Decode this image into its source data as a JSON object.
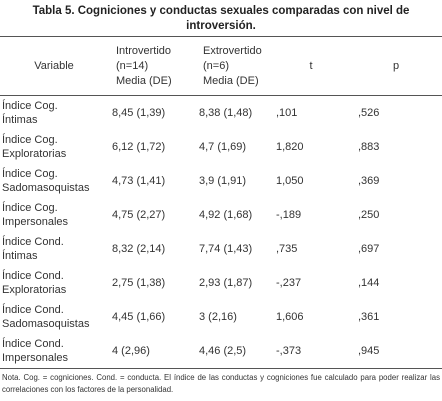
{
  "title": "Tabla 5. Cogniciones y conductas sexuales comparadas con nivel de introversión.",
  "table": {
    "header": [
      [
        "Variable"
      ],
      [
        "Introvertido",
        "(n=14)",
        "Media (DE)"
      ],
      [
        "Extrovertido",
        "(n=6)",
        "Media (DE)"
      ],
      [
        "t"
      ],
      [
        "p"
      ]
    ],
    "rows": [
      [
        [
          "Índice Cog.",
          "Íntimas"
        ],
        "8,45 (1,39)",
        "8,38 (1,48)",
        ",101",
        ",526"
      ],
      [
        [
          "Índice Cog.",
          "Exploratorias"
        ],
        "6,12 (1,72)",
        "4,7 (1,69)",
        "1,820",
        ",883"
      ],
      [
        [
          "Índice Cog.",
          "Sadomasoquistas"
        ],
        "4,73 (1,41)",
        "3,9 (1,91)",
        "1,050",
        ",369"
      ],
      [
        [
          "Índice Cog.",
          "Impersonales"
        ],
        "4,75 (2,27)",
        "4,92 (1,68)",
        "-,189",
        ",250"
      ],
      [
        [
          "Índice Cond.",
          "Íntimas"
        ],
        "8,32 (2,14)",
        "7,74 (1,43)",
        ",735",
        ",697"
      ],
      [
        [
          "Índice Cond.",
          "Exploratorias"
        ],
        "2,75 (1,38)",
        "2,93 (1,87)",
        "-,237",
        ",144"
      ],
      [
        [
          "Índice Cond.",
          "Sadomasoquistas"
        ],
        "4,45 (1,66)",
        "3 (2,16)",
        "1,606",
        ",361"
      ],
      [
        [
          "Índice Cond.",
          "Impersonales"
        ],
        "4 (2,96)",
        "4,46 (2,5)",
        "-,373",
        ",945"
      ]
    ]
  },
  "note": "Nota. Cog. = cogniciones. Cond. = conducta. El índice de las conductas y cogniciones fue calculado para poder realizar las correlaciones con los factores de la personalidad."
}
